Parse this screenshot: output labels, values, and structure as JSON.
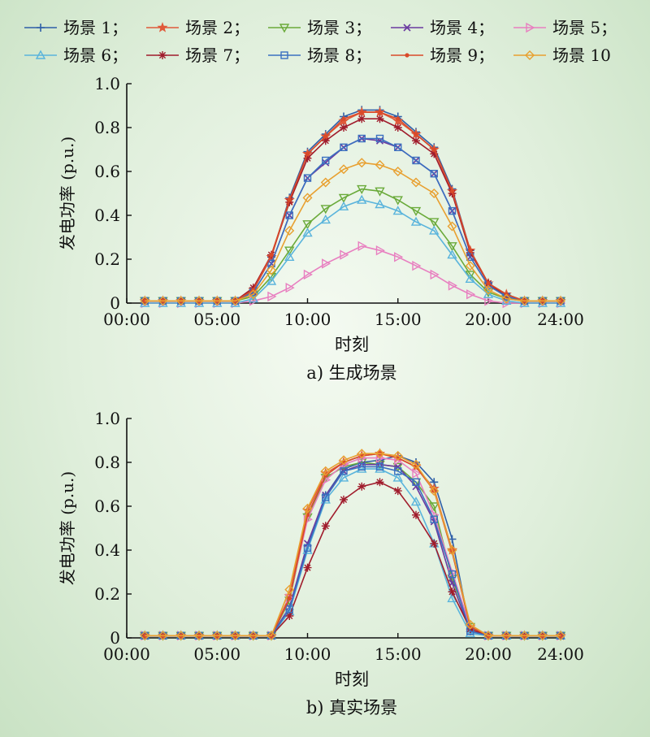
{
  "legend": {
    "entries": [
      "场景 1；",
      "场景 2；",
      "场景 3；",
      "场景 4；",
      "场景 5；",
      "场景 6；",
      "场景 7；",
      "场景 8；",
      "场景 9；",
      "场景 10"
    ]
  },
  "chart_data": [
    {
      "type": "line",
      "caption": "a) 生成场景",
      "xlabel": "时刻",
      "ylabel": "发电功率 (p.u.)",
      "x_ticks": [
        "00:00",
        "05:00",
        "10:00",
        "15:00",
        "20:00",
        "24:00"
      ],
      "yticks": [
        "0",
        "0.2",
        "0.4",
        "0.6",
        "0.8",
        "1.0"
      ],
      "xlim": [
        0,
        24
      ],
      "ylim": [
        0,
        1.0
      ],
      "x": [
        1,
        2,
        3,
        4,
        5,
        6,
        7,
        8,
        9,
        10,
        11,
        12,
        13,
        14,
        15,
        16,
        17,
        18,
        19,
        20,
        21,
        22,
        23,
        24
      ],
      "series": [
        {
          "name": "场景 1",
          "color": "#2f5fa8",
          "marker": "plus",
          "values": [
            0.01,
            0.01,
            0.01,
            0.01,
            0.01,
            0.01,
            0.06,
            0.21,
            0.48,
            0.69,
            0.77,
            0.85,
            0.88,
            0.88,
            0.85,
            0.78,
            0.71,
            0.52,
            0.24,
            0.09,
            0.04,
            0.01,
            0.01,
            0.01
          ]
        },
        {
          "name": "场景 2",
          "color": "#e05a3a",
          "marker": "star",
          "values": [
            0.01,
            0.01,
            0.01,
            0.01,
            0.01,
            0.01,
            0.06,
            0.21,
            0.47,
            0.68,
            0.76,
            0.83,
            0.87,
            0.87,
            0.83,
            0.77,
            0.7,
            0.51,
            0.24,
            0.09,
            0.04,
            0.01,
            0.01,
            0.01
          ]
        },
        {
          "name": "场景 3",
          "color": "#6aaa3a",
          "marker": "tri-down",
          "values": [
            0.01,
            0.01,
            0.01,
            0.01,
            0.01,
            0.01,
            0.03,
            0.12,
            0.24,
            0.36,
            0.43,
            0.48,
            0.52,
            0.51,
            0.47,
            0.42,
            0.37,
            0.26,
            0.13,
            0.05,
            0.02,
            0.01,
            0.01,
            0.01
          ]
        },
        {
          "name": "场景 4",
          "color": "#6a3aa0",
          "marker": "x",
          "values": [
            0.01,
            0.01,
            0.01,
            0.01,
            0.01,
            0.01,
            0.05,
            0.18,
            0.4,
            0.57,
            0.64,
            0.71,
            0.75,
            0.74,
            0.71,
            0.65,
            0.59,
            0.42,
            0.21,
            0.08,
            0.03,
            0.01,
            0.01,
            0.01
          ]
        },
        {
          "name": "场景 5",
          "color": "#e87fc0",
          "marker": "tri-right",
          "values": [
            0.0,
            0.0,
            0.0,
            0.0,
            0.0,
            0.0,
            0.01,
            0.03,
            0.07,
            0.13,
            0.18,
            0.22,
            0.26,
            0.24,
            0.21,
            0.17,
            0.13,
            0.08,
            0.04,
            0.01,
            0.0,
            0.0,
            0.0,
            0.0
          ]
        },
        {
          "name": "场景 6",
          "color": "#5ab4dc",
          "marker": "tri-up",
          "values": [
            0.0,
            0.0,
            0.0,
            0.0,
            0.0,
            0.0,
            0.02,
            0.1,
            0.21,
            0.32,
            0.38,
            0.44,
            0.47,
            0.45,
            0.42,
            0.37,
            0.33,
            0.22,
            0.11,
            0.04,
            0.01,
            0.0,
            0.0,
            0.0
          ]
        },
        {
          "name": "场景 7",
          "color": "#a01c2c",
          "marker": "asterisk",
          "values": [
            0.01,
            0.01,
            0.01,
            0.01,
            0.01,
            0.01,
            0.07,
            0.22,
            0.46,
            0.66,
            0.74,
            0.8,
            0.84,
            0.84,
            0.8,
            0.74,
            0.68,
            0.5,
            0.23,
            0.09,
            0.03,
            0.01,
            0.01,
            0.01
          ]
        },
        {
          "name": "场景 8",
          "color": "#3a70c0",
          "marker": "square",
          "values": [
            0.01,
            0.01,
            0.01,
            0.01,
            0.01,
            0.01,
            0.05,
            0.18,
            0.4,
            0.57,
            0.65,
            0.71,
            0.75,
            0.75,
            0.71,
            0.65,
            0.59,
            0.42,
            0.21,
            0.08,
            0.03,
            0.01,
            0.01,
            0.01
          ]
        },
        {
          "name": "场景 9",
          "color": "#d94a2a",
          "marker": "dot",
          "values": [
            0.01,
            0.01,
            0.01,
            0.01,
            0.01,
            0.01,
            0.06,
            0.22,
            0.47,
            0.68,
            0.76,
            0.84,
            0.87,
            0.87,
            0.84,
            0.77,
            0.7,
            0.51,
            0.24,
            0.09,
            0.04,
            0.01,
            0.01,
            0.01
          ]
        },
        {
          "name": "场景 10",
          "color": "#e8a030",
          "marker": "diamond",
          "values": [
            0.01,
            0.01,
            0.01,
            0.01,
            0.01,
            0.01,
            0.04,
            0.15,
            0.33,
            0.48,
            0.55,
            0.61,
            0.64,
            0.63,
            0.6,
            0.55,
            0.5,
            0.35,
            0.17,
            0.06,
            0.02,
            0.01,
            0.01,
            0.01
          ]
        }
      ]
    },
    {
      "type": "line",
      "caption": "b) 真实场景",
      "xlabel": "时刻",
      "ylabel": "发电功率 (p.u.)",
      "x_ticks": [
        "00:00",
        "05:00",
        "10:00",
        "15:00",
        "20:00",
        "24:00"
      ],
      "yticks": [
        "0",
        "0.2",
        "0.4",
        "0.6",
        "0.8",
        "1.0"
      ],
      "xlim": [
        0,
        24
      ],
      "ylim": [
        0,
        1.0
      ],
      "x": [
        1,
        2,
        3,
        4,
        5,
        6,
        7,
        8,
        9,
        10,
        11,
        12,
        13,
        14,
        15,
        16,
        17,
        18,
        19,
        20,
        21,
        22,
        23,
        24
      ],
      "series": [
        {
          "name": "场景 1",
          "color": "#2f5fa8",
          "marker": "plus",
          "values": [
            0.01,
            0.01,
            0.01,
            0.01,
            0.01,
            0.01,
            0.01,
            0.01,
            0.13,
            0.42,
            0.65,
            0.77,
            0.8,
            0.81,
            0.83,
            0.8,
            0.71,
            0.45,
            0.03,
            0.01,
            0.01,
            0.01,
            0.01,
            0.01
          ]
        },
        {
          "name": "场景 2",
          "color": "#e05a3a",
          "marker": "star",
          "values": [
            0.01,
            0.01,
            0.01,
            0.01,
            0.01,
            0.01,
            0.01,
            0.01,
            0.19,
            0.58,
            0.75,
            0.8,
            0.83,
            0.84,
            0.82,
            0.78,
            0.68,
            0.4,
            0.05,
            0.01,
            0.01,
            0.01,
            0.01,
            0.01
          ]
        },
        {
          "name": "场景 3",
          "color": "#6aaa3a",
          "marker": "tri-down",
          "values": [
            0.01,
            0.01,
            0.01,
            0.01,
            0.01,
            0.01,
            0.01,
            0.01,
            0.17,
            0.55,
            0.73,
            0.78,
            0.8,
            0.79,
            0.78,
            0.71,
            0.6,
            0.27,
            0.05,
            0.01,
            0.01,
            0.01,
            0.01,
            0.01
          ]
        },
        {
          "name": "场景 4",
          "color": "#6a3aa0",
          "marker": "x",
          "values": [
            0.01,
            0.01,
            0.01,
            0.01,
            0.01,
            0.01,
            0.01,
            0.01,
            0.14,
            0.43,
            0.65,
            0.76,
            0.79,
            0.79,
            0.78,
            0.69,
            0.53,
            0.25,
            0.03,
            0.01,
            0.01,
            0.01,
            0.01,
            0.01
          ]
        },
        {
          "name": "场景 5",
          "color": "#e87fc0",
          "marker": "tri-right",
          "values": [
            0.01,
            0.01,
            0.01,
            0.01,
            0.01,
            0.01,
            0.01,
            0.01,
            0.18,
            0.54,
            0.72,
            0.79,
            0.82,
            0.82,
            0.81,
            0.75,
            0.56,
            0.3,
            0.05,
            0.01,
            0.01,
            0.01,
            0.01,
            0.01
          ]
        },
        {
          "name": "场景 6",
          "color": "#5ab4dc",
          "marker": "tri-up",
          "values": [
            0.01,
            0.01,
            0.01,
            0.01,
            0.01,
            0.01,
            0.01,
            0.01,
            0.12,
            0.4,
            0.63,
            0.73,
            0.77,
            0.77,
            0.73,
            0.62,
            0.43,
            0.18,
            0.02,
            0.01,
            0.01,
            0.01,
            0.01,
            0.01
          ]
        },
        {
          "name": "场景 7",
          "color": "#a01c2c",
          "marker": "asterisk",
          "values": [
            0.01,
            0.01,
            0.01,
            0.01,
            0.01,
            0.01,
            0.01,
            0.01,
            0.1,
            0.32,
            0.51,
            0.63,
            0.69,
            0.71,
            0.67,
            0.56,
            0.43,
            0.21,
            0.04,
            0.01,
            0.01,
            0.01,
            0.01,
            0.01
          ]
        },
        {
          "name": "场景 8",
          "color": "#3a70c0",
          "marker": "square",
          "values": [
            0.01,
            0.01,
            0.01,
            0.01,
            0.01,
            0.01,
            0.01,
            0.01,
            0.13,
            0.41,
            0.64,
            0.76,
            0.78,
            0.78,
            0.76,
            0.71,
            0.54,
            0.29,
            0.03,
            0.01,
            0.01,
            0.01,
            0.01,
            0.01
          ]
        },
        {
          "name": "场景 9",
          "color": "#d94a2a",
          "marker": "dot",
          "values": [
            0.01,
            0.01,
            0.01,
            0.01,
            0.01,
            0.01,
            0.01,
            0.01,
            0.18,
            0.56,
            0.74,
            0.8,
            0.83,
            0.84,
            0.82,
            0.78,
            0.67,
            0.39,
            0.05,
            0.01,
            0.01,
            0.01,
            0.01,
            0.01
          ]
        },
        {
          "name": "场景 10",
          "color": "#e8a030",
          "marker": "diamond",
          "values": [
            0.01,
            0.01,
            0.01,
            0.01,
            0.01,
            0.01,
            0.01,
            0.01,
            0.22,
            0.59,
            0.76,
            0.81,
            0.84,
            0.84,
            0.83,
            0.79,
            0.67,
            0.4,
            0.06,
            0.01,
            0.01,
            0.01,
            0.01,
            0.01
          ]
        }
      ]
    }
  ]
}
